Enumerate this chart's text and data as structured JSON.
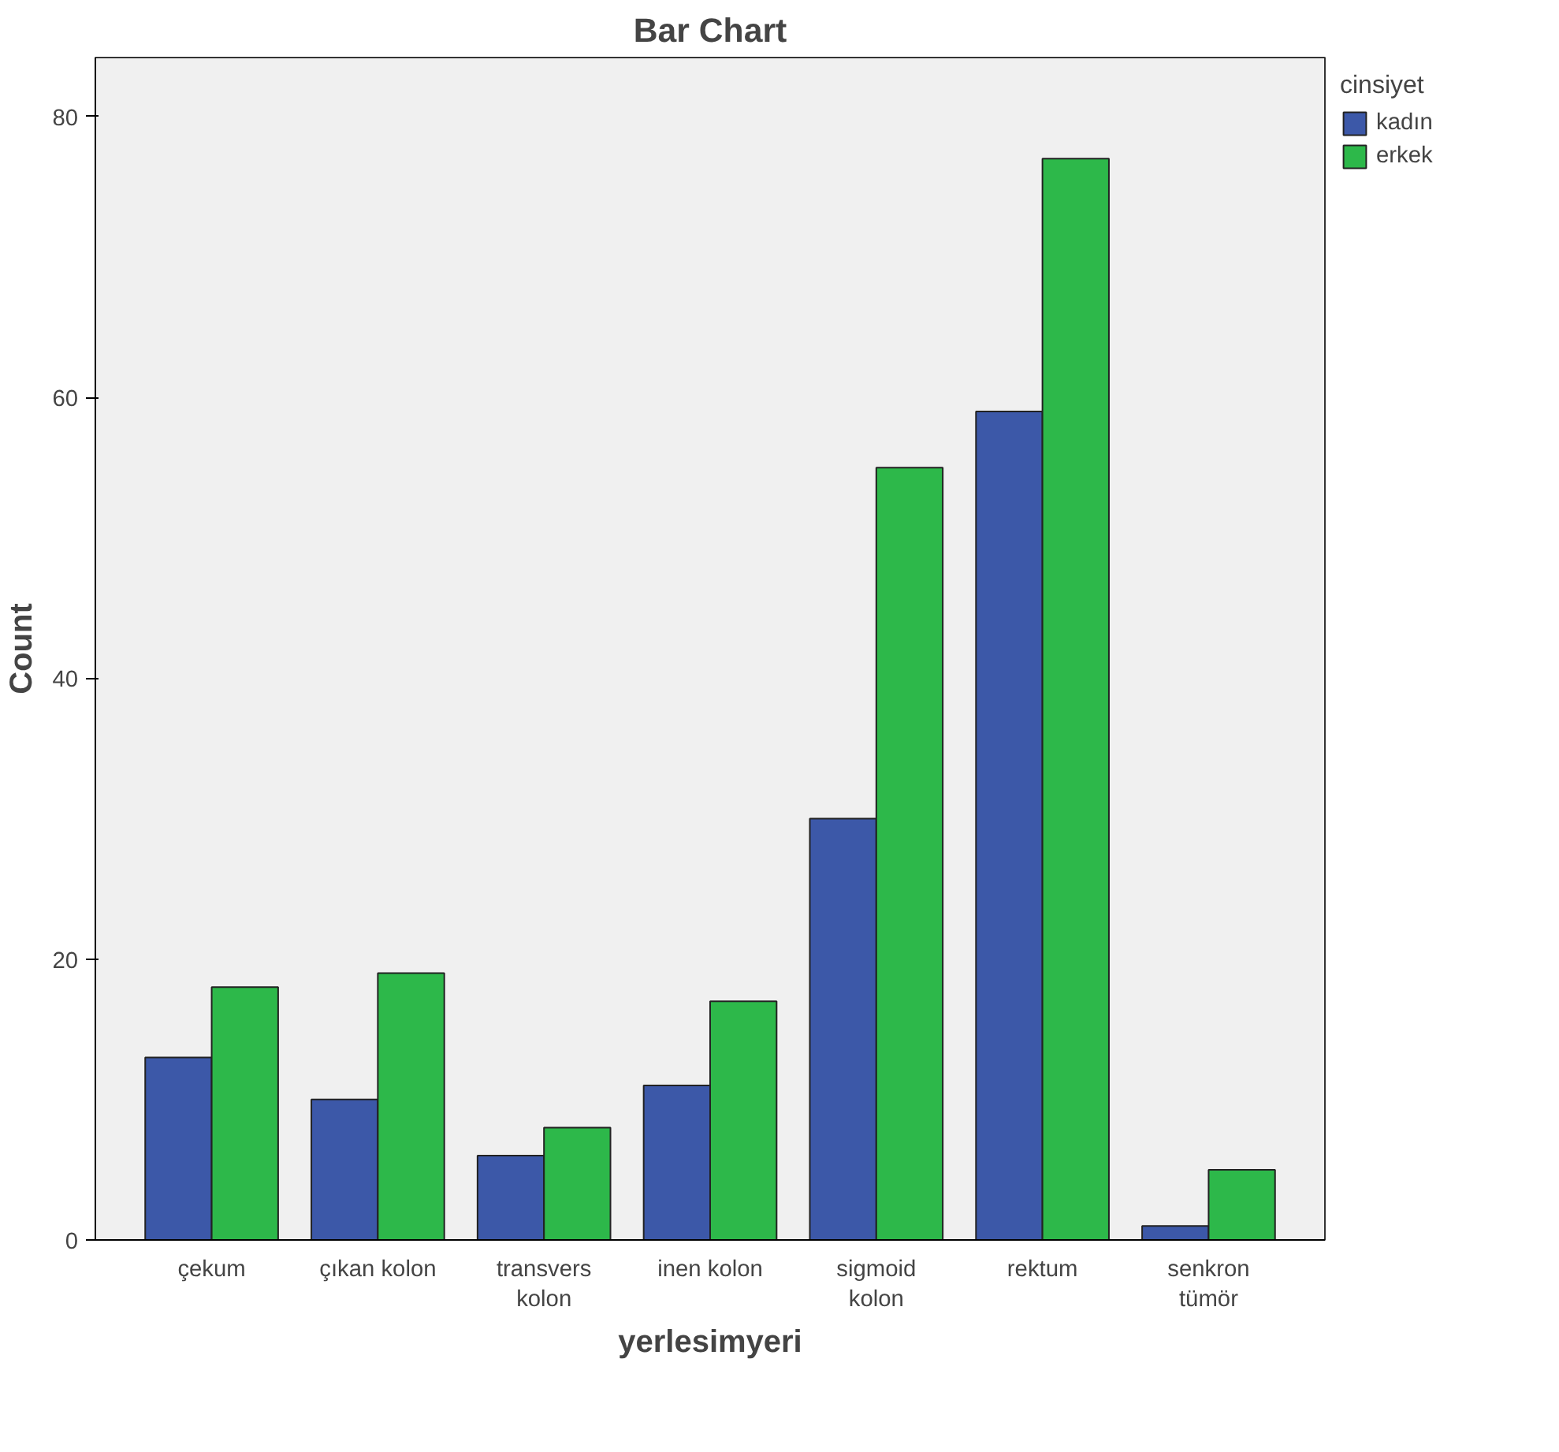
{
  "chart_data": {
    "type": "bar",
    "title": "Bar Chart",
    "xlabel": "yerlesimyeri",
    "ylabel": "Count",
    "legend_title": "cinsiyet",
    "categories": [
      "çekum",
      "çıkan kolon",
      "transvers\nkolon",
      "inen kolon",
      "sigmoid\nkolon",
      "rektum",
      "senkron\ntümör"
    ],
    "series": [
      {
        "name": "kadın",
        "color": "#3c58a8",
        "values": [
          13,
          10,
          6,
          11,
          30,
          59,
          1
        ]
      },
      {
        "name": "erkek",
        "color": "#2db84a",
        "values": [
          18,
          19,
          8,
          17,
          55,
          77,
          5
        ]
      }
    ],
    "ylim": [
      0,
      84.2
    ],
    "yticks": [
      0,
      20,
      40,
      60,
      80
    ],
    "grid": false,
    "legend": "top right"
  }
}
